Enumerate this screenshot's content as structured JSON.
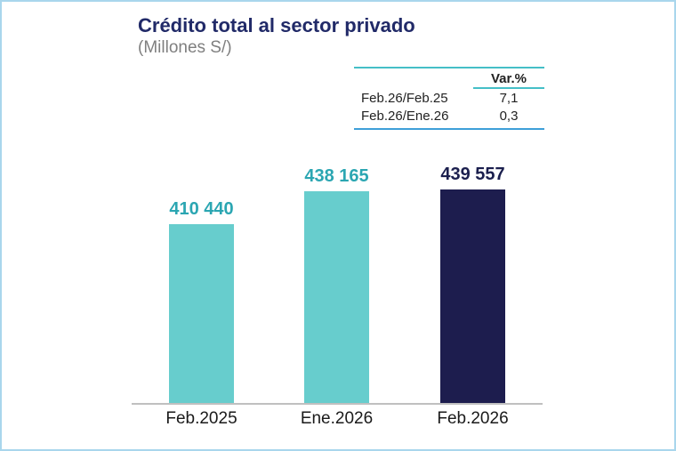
{
  "chart_data": {
    "type": "bar",
    "title": "Crédito total al sector privado",
    "subtitle": "(Millones S/)",
    "categories": [
      "Feb.2025",
      "Ene.2026",
      "Feb.2026"
    ],
    "values": [
      410440,
      438165,
      439557
    ],
    "value_labels": [
      "410 440",
      "438 165",
      "439 557"
    ],
    "bar_colors": [
      "#67CDCD",
      "#67CDCD",
      "#1D1D4E"
    ],
    "value_label_colors": [
      "#2BA6B2",
      "#2BA6B2",
      "#1B1F4E"
    ],
    "axis": {
      "y_axis_visible": false,
      "gridlines": false,
      "y_truncated": true,
      "y_baseline_value": 260000,
      "x_axis_line_color": "#C0C0C0"
    },
    "legend": "none"
  },
  "var_table": {
    "header": "Var.%",
    "rows": [
      {
        "label": "Feb.26/Feb.25",
        "value": "7,1"
      },
      {
        "label": "Feb.26/Ene.26",
        "value": "0,3"
      }
    ],
    "top_line_color": "#45BFC7",
    "header_underline_color": "#45BFC7",
    "bottom_line_color": "#3E9FD8"
  },
  "frame": {
    "border_color": "#A9D6EC"
  }
}
